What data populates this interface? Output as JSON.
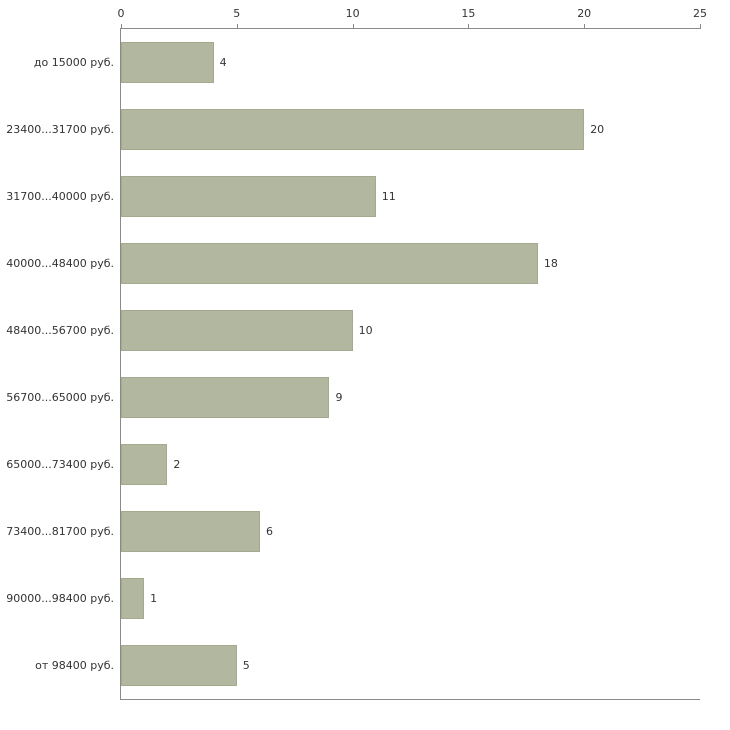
{
  "chart_data": {
    "type": "bar",
    "orientation": "horizontal",
    "title": "",
    "xlabel": "",
    "ylabel": "",
    "categories": [
      "до 15000 руб.",
      "23400...31700 руб.",
      "31700...40000 руб.",
      "40000...48400 руб.",
      "48400...56700 руб.",
      "56700...65000 руб.",
      "65000...73400 руб.",
      "73400...81700 руб.",
      "90000...98400 руб.",
      "от 98400 руб."
    ],
    "values": [
      4,
      20,
      11,
      18,
      10,
      9,
      2,
      6,
      1,
      5
    ],
    "xlim": [
      0,
      25
    ],
    "xticks": [
      0,
      5,
      10,
      15,
      20,
      25
    ],
    "value_labels": true,
    "grid": false,
    "legend": "none",
    "axis_position": "top",
    "colors": {
      "bar_fill": "#b2b8a0",
      "bar_border": "#a3aa8e",
      "axis_line": "#8a8a8a",
      "text": "#333333",
      "background": "#ffffff"
    }
  }
}
